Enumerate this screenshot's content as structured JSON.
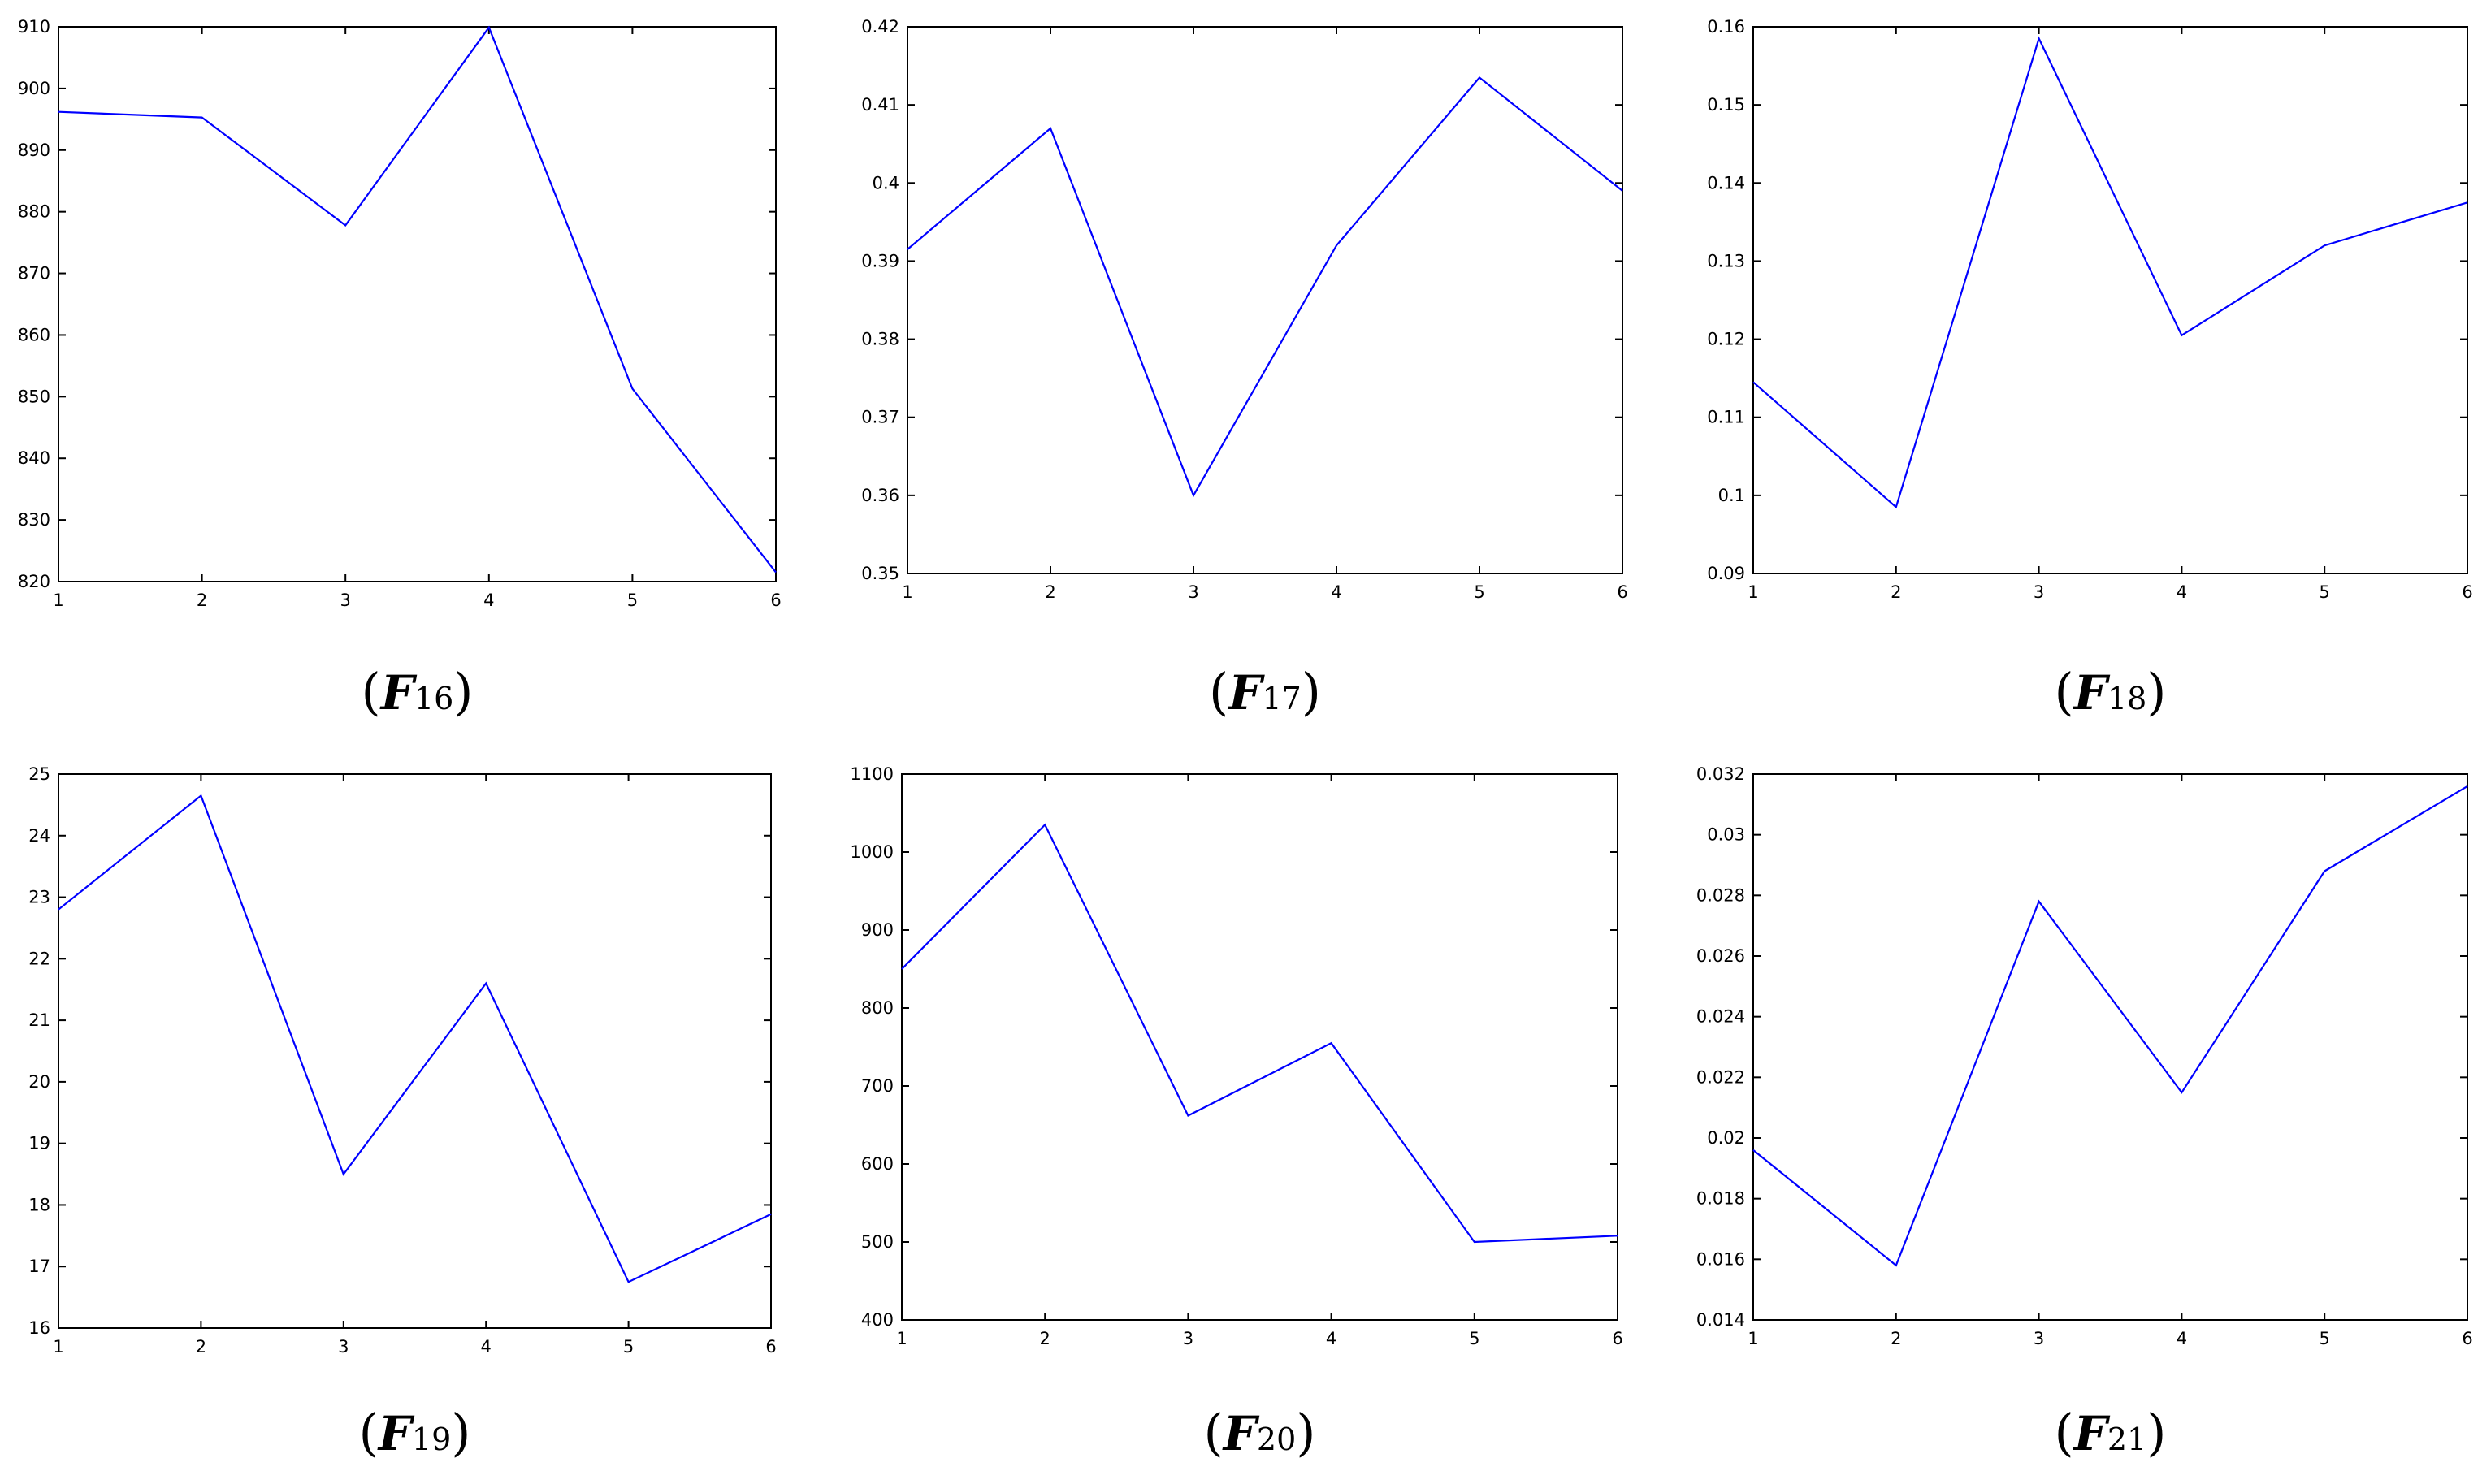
{
  "series_color": "#0000ff",
  "chart_data": [
    {
      "type": "line",
      "caption": {
        "letter": "F",
        "subscript": "16"
      },
      "x": [
        1,
        2,
        3,
        4,
        5,
        6
      ],
      "series": [
        {
          "values": [
            896.2,
            895.3,
            877.8,
            909.9,
            851.3,
            821.5
          ]
        }
      ],
      "xlim": [
        1,
        6
      ],
      "ylim": [
        820,
        910
      ],
      "xticks": [
        "1",
        "2",
        "3",
        "4",
        "5",
        "6"
      ],
      "yticks": [
        "820",
        "830",
        "840",
        "850",
        "860",
        "870",
        "880",
        "890",
        "900",
        "910"
      ],
      "grid": false
    },
    {
      "type": "line",
      "caption": {
        "letter": "F",
        "subscript": "17"
      },
      "x": [
        1,
        2,
        3,
        4,
        5,
        6
      ],
      "series": [
        {
          "values": [
            0.3915,
            0.407,
            0.36,
            0.392,
            0.4135,
            0.399
          ]
        }
      ],
      "xlim": [
        1,
        6
      ],
      "ylim": [
        0.35,
        0.42
      ],
      "xticks": [
        "1",
        "2",
        "3",
        "4",
        "5",
        "6"
      ],
      "yticks": [
        "0.35",
        "0.36",
        "0.37",
        "0.38",
        "0.39",
        "0.4",
        "0.41",
        "0.42"
      ],
      "grid": false
    },
    {
      "type": "line",
      "caption": {
        "letter": "F",
        "subscript": "18"
      },
      "x": [
        1,
        2,
        3,
        4,
        5,
        6
      ],
      "series": [
        {
          "values": [
            0.1145,
            0.0985,
            0.1585,
            0.1205,
            0.132,
            0.1375
          ]
        }
      ],
      "xlim": [
        1,
        6
      ],
      "ylim": [
        0.09,
        0.16
      ],
      "xticks": [
        "1",
        "2",
        "3",
        "4",
        "5",
        "6"
      ],
      "yticks": [
        "0.09",
        "0.1",
        "0.11",
        "0.12",
        "0.13",
        "0.14",
        "0.15",
        "0.16"
      ],
      "grid": false
    },
    {
      "type": "line",
      "caption": {
        "letter": "F",
        "subscript": "19"
      },
      "x": [
        1,
        2,
        3,
        4,
        5,
        6
      ],
      "series": [
        {
          "values": [
            22.8,
            24.65,
            18.5,
            21.6,
            16.75,
            17.85
          ]
        }
      ],
      "xlim": [
        1,
        6
      ],
      "ylim": [
        16,
        25
      ],
      "xticks": [
        "1",
        "2",
        "3",
        "4",
        "5",
        "6"
      ],
      "yticks": [
        "16",
        "17",
        "18",
        "19",
        "20",
        "21",
        "22",
        "23",
        "24",
        "25"
      ],
      "grid": false
    },
    {
      "type": "line",
      "caption": {
        "letter": "F",
        "subscript": "20"
      },
      "x": [
        1,
        2,
        3,
        4,
        5,
        6
      ],
      "series": [
        {
          "values": [
            850,
            1035,
            662,
            755,
            500,
            508
          ]
        }
      ],
      "xlim": [
        1,
        6
      ],
      "ylim": [
        400,
        1100
      ],
      "xticks": [
        "1",
        "2",
        "3",
        "4",
        "5",
        "6"
      ],
      "yticks": [
        "400",
        "500",
        "600",
        "700",
        "800",
        "900",
        "1000",
        "1100"
      ],
      "grid": false
    },
    {
      "type": "line",
      "caption": {
        "letter": "F",
        "subscript": "21"
      },
      "x": [
        1,
        2,
        3,
        4,
        5,
        6
      ],
      "series": [
        {
          "values": [
            0.0196,
            0.0158,
            0.0278,
            0.0215,
            0.0288,
            0.0316
          ]
        }
      ],
      "xlim": [
        1,
        6
      ],
      "ylim": [
        0.014,
        0.032
      ],
      "xticks": [
        "1",
        "2",
        "3",
        "4",
        "5",
        "6"
      ],
      "yticks": [
        "0.014",
        "0.016",
        "0.018",
        "0.02",
        "0.022",
        "0.024",
        "0.026",
        "0.028",
        "0.03",
        "0.032"
      ],
      "grid": false
    }
  ]
}
